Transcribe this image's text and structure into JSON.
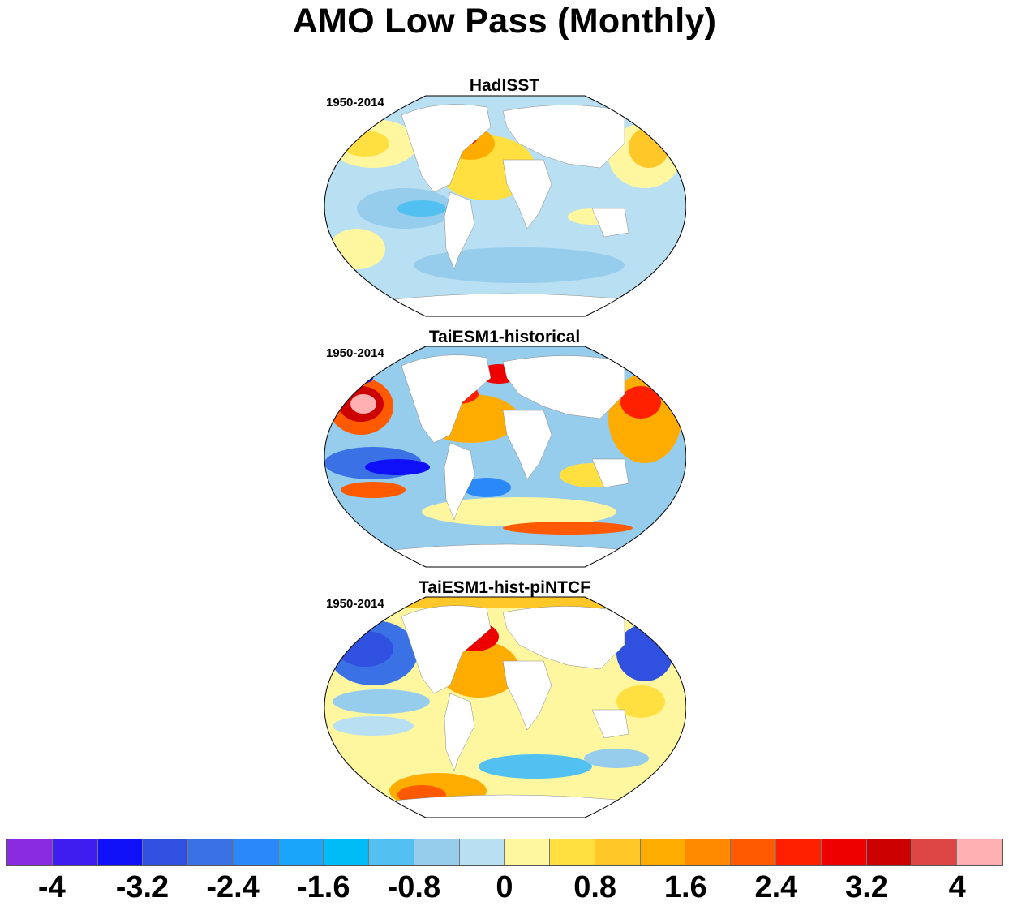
{
  "title": "AMO Low Pass (Monthly)",
  "panels": [
    {
      "name": "HadISST",
      "period": "1950-2014"
    },
    {
      "name": "TaiESM1-historical",
      "period": "1950-2014"
    },
    {
      "name": "TaiESM1-hist-piNTCF",
      "period": "1950-2014"
    }
  ],
  "colorbar": {
    "colors": [
      "#8a2be2",
      "#3f1cf0",
      "#1010f8",
      "#3050e0",
      "#3a72e6",
      "#2a88f8",
      "#1aa4fa",
      "#00bcf6",
      "#52c0f0",
      "#96ccec",
      "#b9dff3",
      "#fff7a0",
      "#ffe040",
      "#ffc828",
      "#ffac00",
      "#ff8a00",
      "#ff5a00",
      "#ff2000",
      "#ee0000",
      "#cc0000",
      "#dd4444",
      "#ffb0b0"
    ],
    "tick_labels": [
      "-4",
      "-3.2",
      "-2.4",
      "-1.6",
      "-0.8",
      "0",
      "0.8",
      "1.6",
      "2.4",
      "3.2",
      "4"
    ]
  }
}
